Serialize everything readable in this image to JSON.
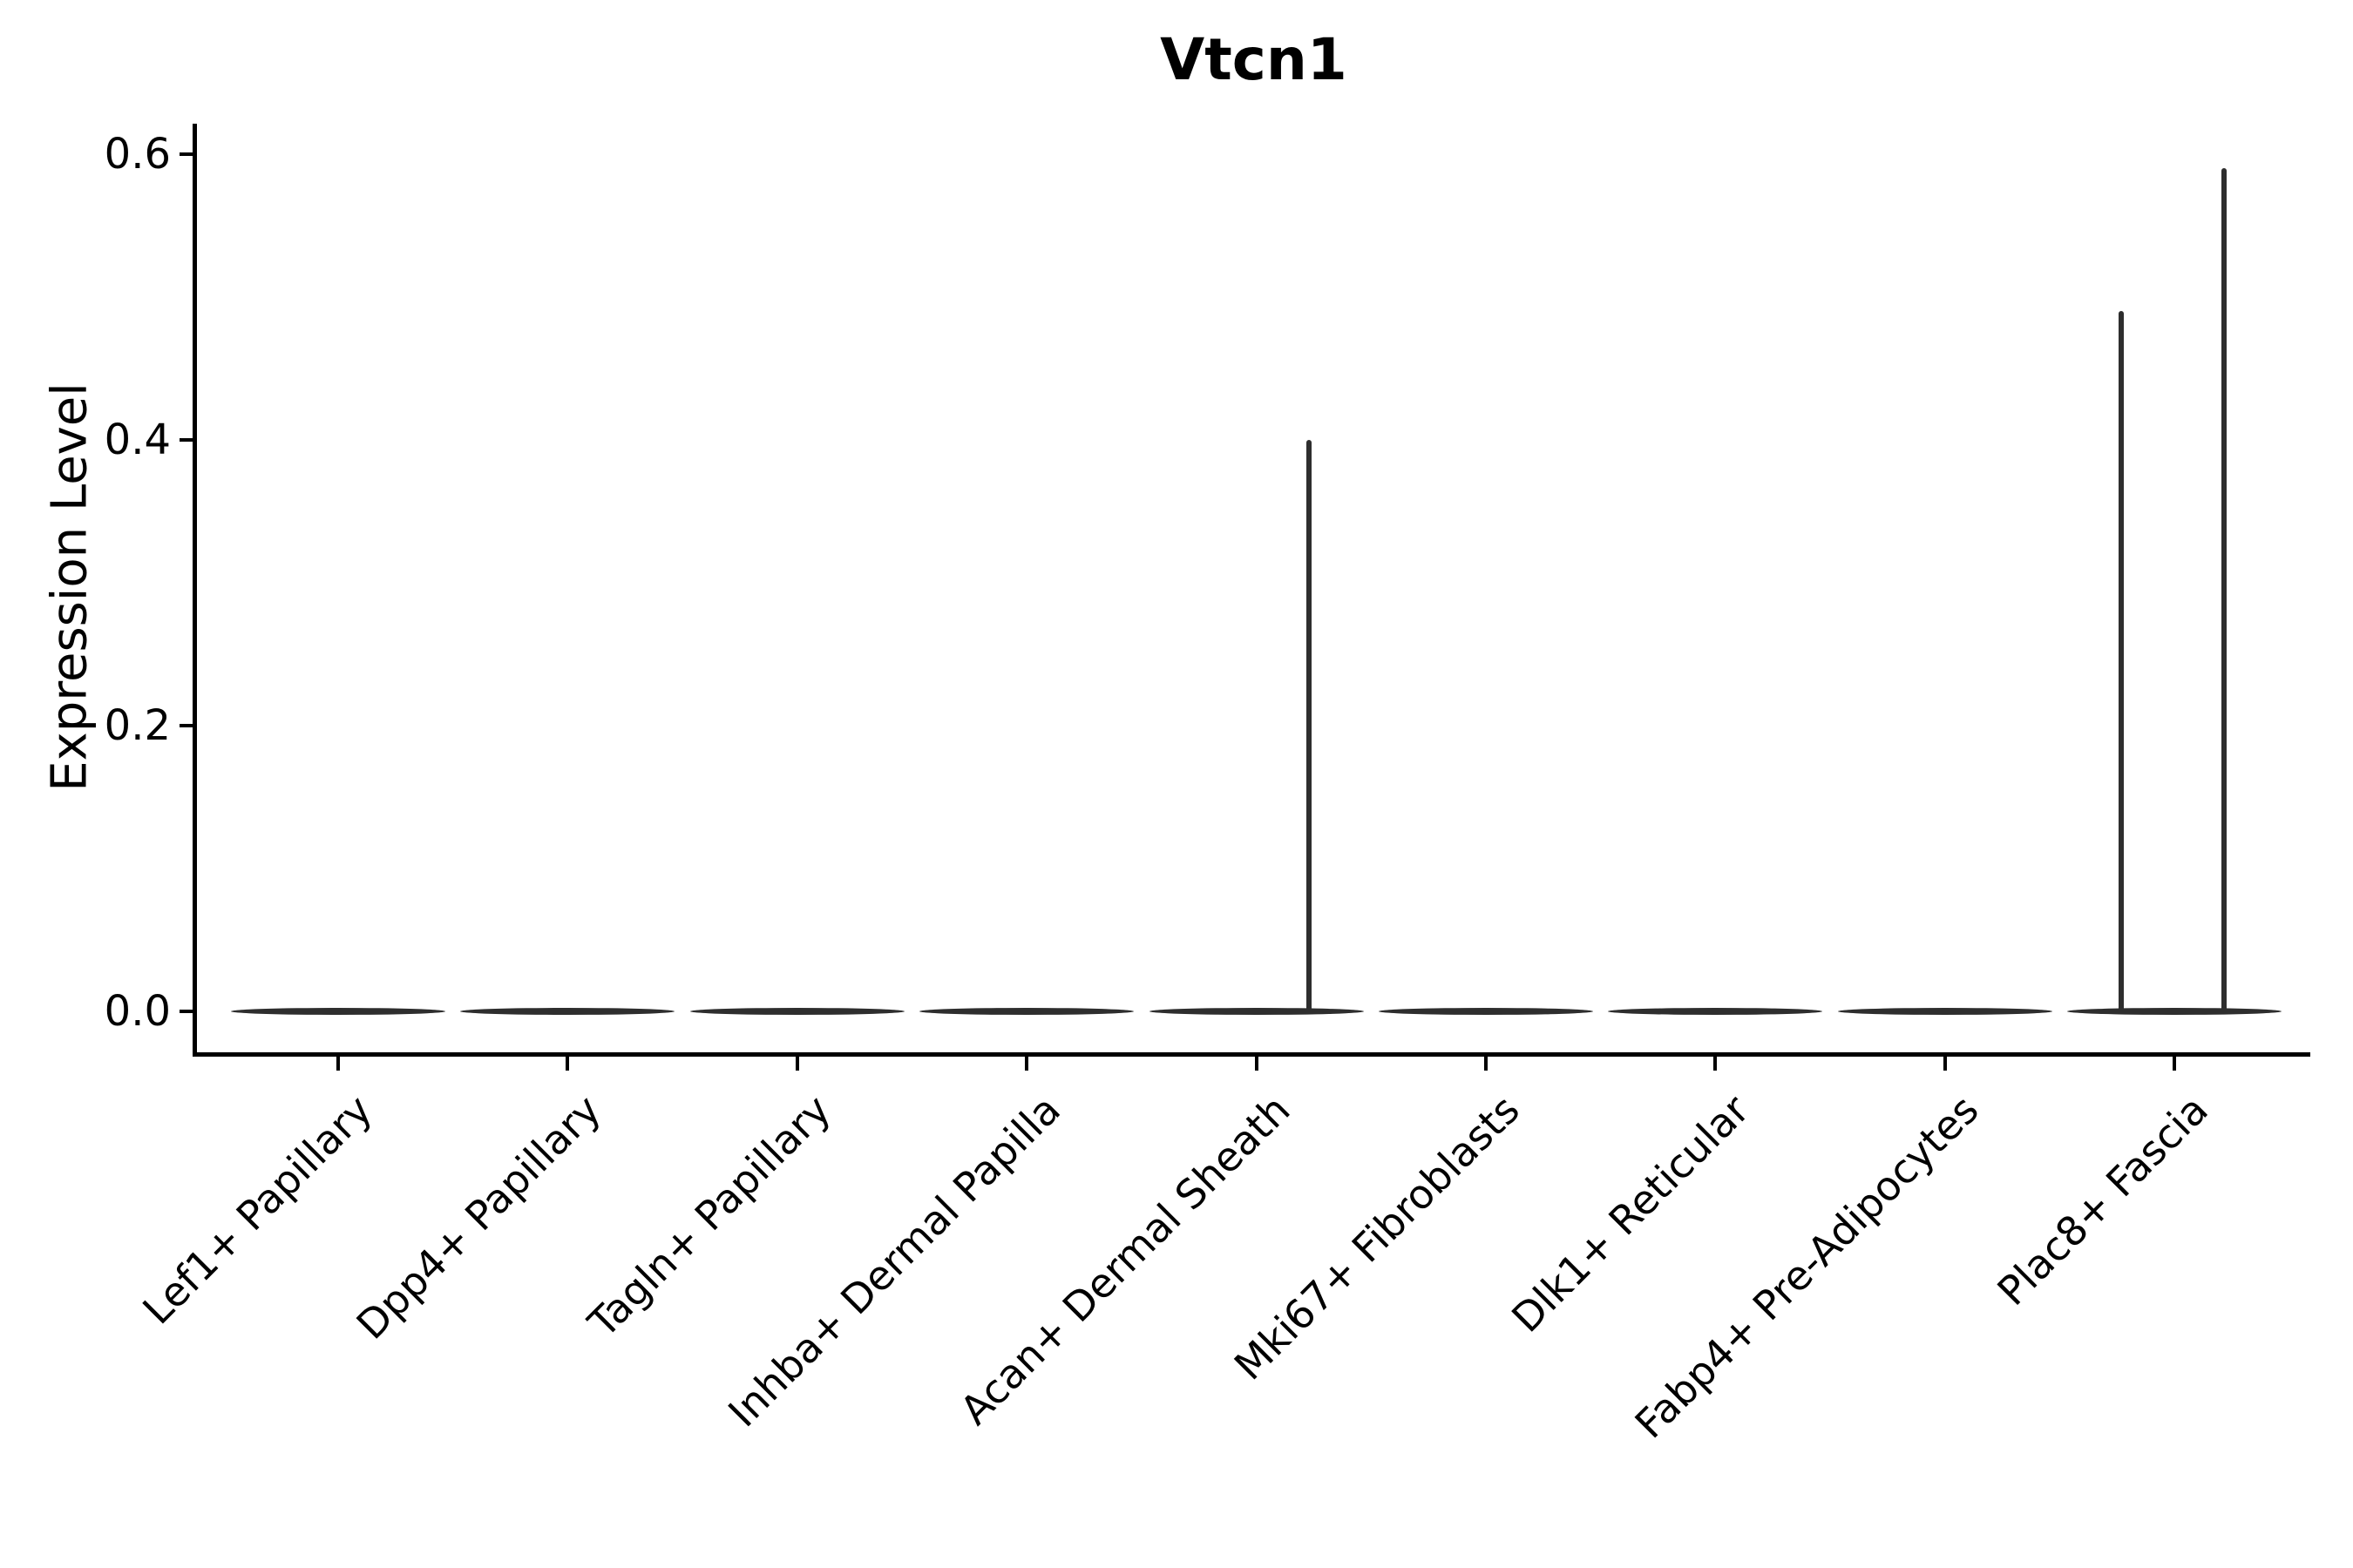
{
  "chart_data": {
    "type": "violin",
    "title": "Vtcn1",
    "xlabel": "",
    "ylabel": "Expression Level",
    "ylim": [
      0,
      0.6
    ],
    "grid": false,
    "legend": null,
    "ytick_values": [
      0.0,
      0.2,
      0.4,
      0.6
    ],
    "ytick_labels": [
      "0.0",
      "0.2",
      "0.4",
      "0.6"
    ],
    "categories": [
      "Lef1+ Papillary",
      "Dpp4+ Papillary",
      "Tagln+ Papillary",
      "Inhba+ Dermal Papilla",
      "Acan+ Dermal Sheath",
      "Mki67+ Fibroblasts",
      "Dlk1+ Reticular",
      "Fabp4+ Pre-Adipocytes",
      "Plac8+ Fascia"
    ],
    "violins": [
      {
        "category": "Lef1+ Papillary",
        "base_value": 0.0,
        "max_value": 0.0,
        "spikes": []
      },
      {
        "category": "Dpp4+ Papillary",
        "base_value": 0.0,
        "max_value": 0.0,
        "spikes": []
      },
      {
        "category": "Tagln+ Papillary",
        "base_value": 0.0,
        "max_value": 0.0,
        "spikes": []
      },
      {
        "category": "Inhba+ Dermal Papilla",
        "base_value": 0.0,
        "max_value": 0.0,
        "spikes": []
      },
      {
        "category": "Acan+ Dermal Sheath",
        "base_value": 0.0,
        "max_value": 0.4,
        "spikes": [
          {
            "value": 0.4,
            "offset_frac": 0.49
          }
        ]
      },
      {
        "category": "Mki67+ Fibroblasts",
        "base_value": 0.0,
        "max_value": 0.0,
        "spikes": []
      },
      {
        "category": "Dlk1+ Reticular",
        "base_value": 0.0,
        "max_value": 0.0,
        "spikes": []
      },
      {
        "category": "Fabp4+ Pre-Adipocytes",
        "base_value": 0.0,
        "max_value": 0.0,
        "spikes": []
      },
      {
        "category": "Plac8+ Fascia",
        "base_value": 0.0,
        "max_value": 0.59,
        "spikes": [
          {
            "value": 0.49,
            "offset_frac": -0.5
          },
          {
            "value": 0.59,
            "offset_frac": 0.46
          }
        ]
      }
    ],
    "colors": {
      "violin": "#2e2e2e",
      "axis": "#000000",
      "text": "#000000"
    }
  }
}
